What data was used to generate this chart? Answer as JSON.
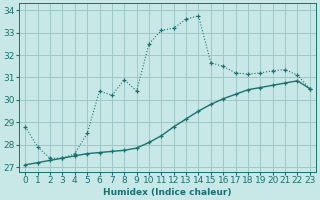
{
  "xlabel": "Humidex (Indice chaleur)",
  "ylabel": "",
  "background_color": "#c8e8e8",
  "grid_color": "#a0c8c8",
  "line_color": "#1a7070",
  "xlim": [
    -0.5,
    23.5
  ],
  "ylim": [
    26.8,
    34.3
  ],
  "yticks": [
    27,
    28,
    29,
    30,
    31,
    32,
    33,
    34
  ],
  "xticks": [
    0,
    1,
    2,
    3,
    4,
    5,
    6,
    7,
    8,
    9,
    10,
    11,
    12,
    13,
    14,
    15,
    16,
    17,
    18,
    19,
    20,
    21,
    22,
    23
  ],
  "series1_x": [
    0,
    1,
    2,
    3,
    4,
    5,
    6,
    7,
    8,
    9,
    10,
    11,
    12,
    13,
    14,
    15,
    16,
    17,
    18,
    19,
    20,
    21,
    22,
    23
  ],
  "series1_y": [
    28.8,
    27.9,
    27.4,
    27.4,
    27.6,
    28.5,
    30.4,
    30.2,
    30.9,
    30.4,
    32.5,
    33.1,
    33.2,
    33.6,
    33.75,
    31.65,
    31.5,
    31.2,
    31.15,
    31.2,
    31.3,
    31.35,
    31.1,
    30.5
  ],
  "series2_x": [
    0,
    1,
    2,
    3,
    4,
    5,
    6,
    7,
    8,
    9,
    10,
    11,
    12,
    13,
    14,
    15,
    16,
    17,
    18,
    19,
    20,
    21,
    22,
    23
  ],
  "series2_y": [
    27.1,
    27.2,
    27.3,
    27.4,
    27.5,
    27.6,
    27.65,
    27.7,
    27.75,
    27.85,
    28.1,
    28.4,
    28.8,
    29.15,
    29.5,
    29.8,
    30.05,
    30.25,
    30.45,
    30.55,
    30.65,
    30.75,
    30.85,
    30.5
  ],
  "font_size": 6.5
}
